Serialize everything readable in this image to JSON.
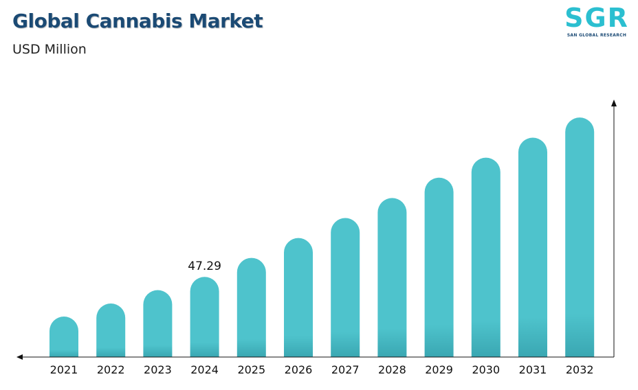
{
  "header": {
    "title": "Global Cannabis Market",
    "subtitle": "USD Million"
  },
  "logo": {
    "letters": "SGR",
    "tagline": "SAN GLOBAL RESEARCH"
  },
  "colors": {
    "bar": "#4ec3cc",
    "bar_bottom": "#3aa7b2",
    "axis": "#111111",
    "title": "#1b4a74"
  },
  "chart_data": {
    "type": "bar",
    "categories": [
      "2021",
      "2022",
      "2023",
      "2024",
      "2025",
      "2026",
      "2027",
      "2028",
      "2029",
      "2030",
      "2031",
      "2032"
    ],
    "values": [
      23.9,
      31.6,
      39.5,
      47.29,
      58.5,
      70.2,
      82.0,
      93.8,
      105.8,
      117.6,
      129.4,
      141.3
    ],
    "data_labels": [
      {
        "category": "2024",
        "text": "47.29"
      }
    ],
    "title": "Global Cannabis Market",
    "ylabel": "USD Million",
    "xlabel": "",
    "ylim": [
      0,
      145
    ],
    "grid": false,
    "legend": "none"
  }
}
